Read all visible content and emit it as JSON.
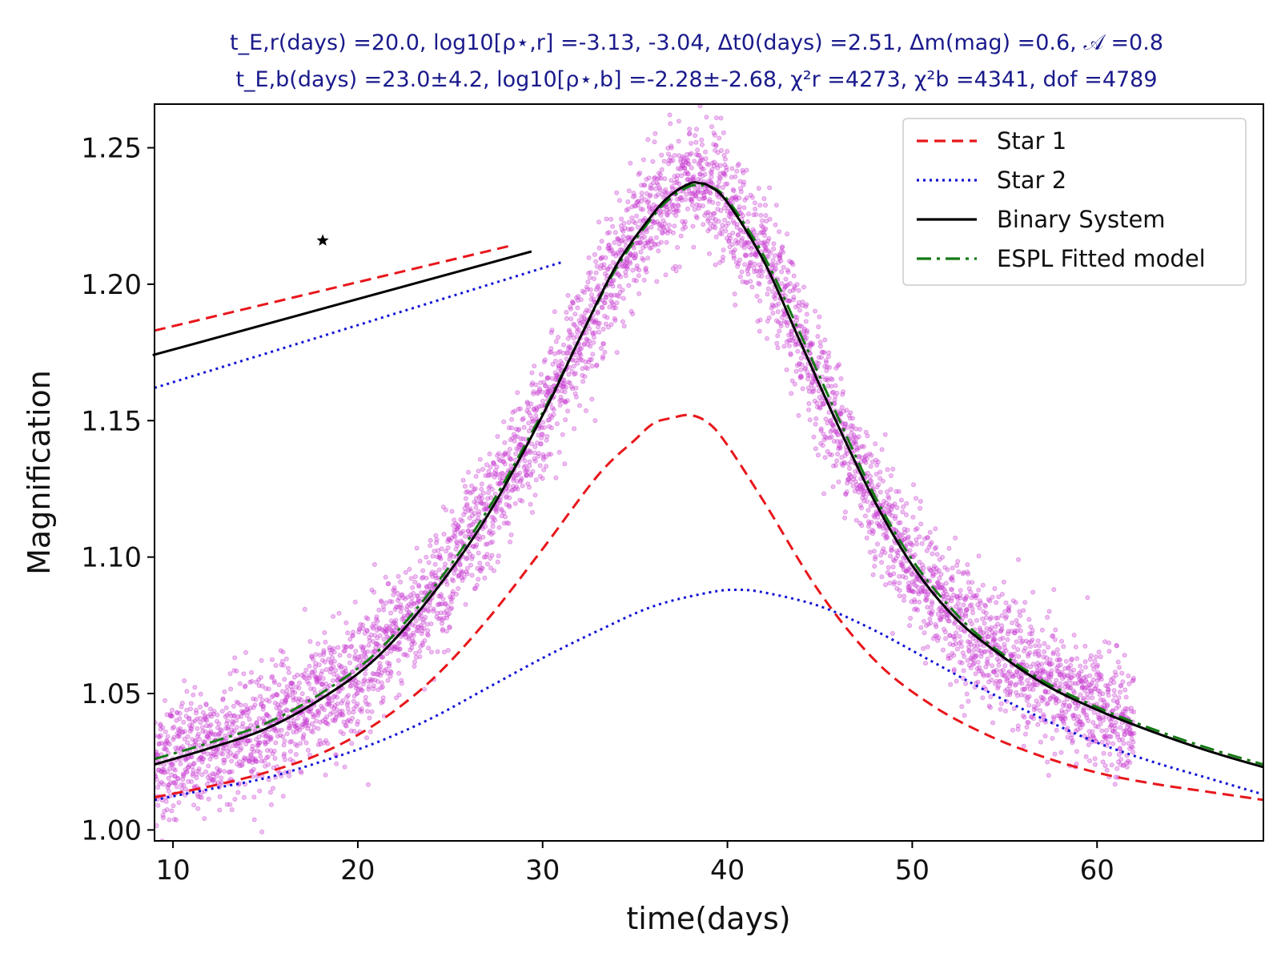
{
  "colors": {
    "star1": "#e8161b",
    "star2": "#1313d6",
    "binary": "#000000",
    "espl": "#137a13",
    "data": "#c83cd2",
    "title": "#1a1a8c"
  },
  "chart_data": {
    "type": "line",
    "title_lines": [
      "t_E,r(days) =20.0,  log10[ρ⋆,r] =-3.13, -3.04,  Δt0(days) =2.51,  Δm(mag) =0.6,  𝒜 =0.8",
      "t_E,b(days) =23.0±4.2,  log10[ρ⋆,b] =-2.28±-2.68,  χ²r =4273,  χ²b =4341,  dof =4789"
    ],
    "xlabel": "time(days)",
    "ylabel": "Magnification",
    "xlim": [
      9,
      69
    ],
    "ylim": [
      0.996,
      1.266
    ],
    "xticks": [
      10,
      20,
      30,
      40,
      50,
      60
    ],
    "yticks": [
      1.0,
      1.05,
      1.1,
      1.15,
      1.2,
      1.25
    ],
    "ytick_labels": [
      "1.00",
      "1.05",
      "1.10",
      "1.15",
      "1.20",
      "1.25"
    ],
    "grid": false,
    "legend_position": "top-right",
    "series": [
      {
        "name": "Star 1",
        "style": "dashed",
        "x": [
          9,
          12,
          15,
          18,
          21,
          24,
          27,
          30,
          33,
          35,
          36,
          37,
          38,
          39,
          40,
          42,
          45,
          48,
          51,
          54,
          57,
          60,
          63,
          66,
          69
        ],
        "y": [
          1.012,
          1.016,
          1.021,
          1.028,
          1.039,
          1.055,
          1.077,
          1.103,
          1.13,
          1.143,
          1.149,
          1.151,
          1.152,
          1.149,
          1.141,
          1.12,
          1.087,
          1.062,
          1.046,
          1.035,
          1.027,
          1.021,
          1.017,
          1.014,
          1.011
        ]
      },
      {
        "name": "Star 2",
        "style": "dotted",
        "x": [
          9,
          12,
          15,
          18,
          21,
          24,
          27,
          30,
          33,
          36,
          39,
          40.5,
          42,
          45,
          48,
          51,
          54,
          57,
          60,
          63,
          66,
          69
        ],
        "y": [
          1.011,
          1.015,
          1.019,
          1.025,
          1.032,
          1.041,
          1.052,
          1.063,
          1.073,
          1.082,
          1.087,
          1.088,
          1.087,
          1.082,
          1.073,
          1.062,
          1.051,
          1.041,
          1.032,
          1.025,
          1.019,
          1.013
        ]
      },
      {
        "name": "Binary System",
        "style": "solid",
        "x": [
          9,
          12,
          15,
          18,
          21,
          24,
          27,
          30,
          32,
          34,
          36,
          37,
          38,
          38.5,
          39,
          40,
          42,
          44,
          46,
          48,
          50,
          52,
          54,
          57,
          60,
          63,
          66,
          69
        ],
        "y": [
          1.024,
          1.03,
          1.037,
          1.048,
          1.063,
          1.086,
          1.115,
          1.152,
          1.18,
          1.207,
          1.226,
          1.233,
          1.237,
          1.237,
          1.236,
          1.23,
          1.208,
          1.178,
          1.148,
          1.12,
          1.097,
          1.08,
          1.068,
          1.054,
          1.044,
          1.036,
          1.029,
          1.023
        ]
      },
      {
        "name": "ESPL Fitted model",
        "style": "dashdot",
        "x": [
          9,
          12,
          15,
          18,
          21,
          24,
          27,
          30,
          32,
          34,
          36,
          37,
          38,
          38.5,
          39,
          40,
          42,
          44,
          46,
          48,
          50,
          52,
          54,
          57,
          60,
          63,
          66,
          69
        ],
        "y": [
          1.026,
          1.032,
          1.039,
          1.05,
          1.065,
          1.088,
          1.117,
          1.153,
          1.18,
          1.206,
          1.225,
          1.232,
          1.236,
          1.236,
          1.236,
          1.231,
          1.21,
          1.181,
          1.151,
          1.122,
          1.099,
          1.082,
          1.069,
          1.055,
          1.045,
          1.037,
          1.03,
          1.024
        ]
      }
    ],
    "scatter": {
      "n_points": 4789,
      "x_range": [
        9,
        62
      ],
      "scatter_sigma": 0.011,
      "follows": "Binary System"
    },
    "inset": {
      "star_marker": {
        "x": 18.1,
        "y": 1.216
      },
      "lines": [
        {
          "series": "Star 1",
          "style": "dashed",
          "x": [
            9.0,
            28.2
          ],
          "y": [
            1.183,
            1.214
          ]
        },
        {
          "series": "Binary System",
          "style": "solid",
          "x": [
            8.9,
            29.4
          ],
          "y": [
            1.174,
            1.212
          ]
        },
        {
          "series": "Star 2",
          "style": "dotted",
          "x": [
            9.0,
            31.0
          ],
          "y": [
            1.162,
            1.208
          ]
        }
      ]
    }
  }
}
